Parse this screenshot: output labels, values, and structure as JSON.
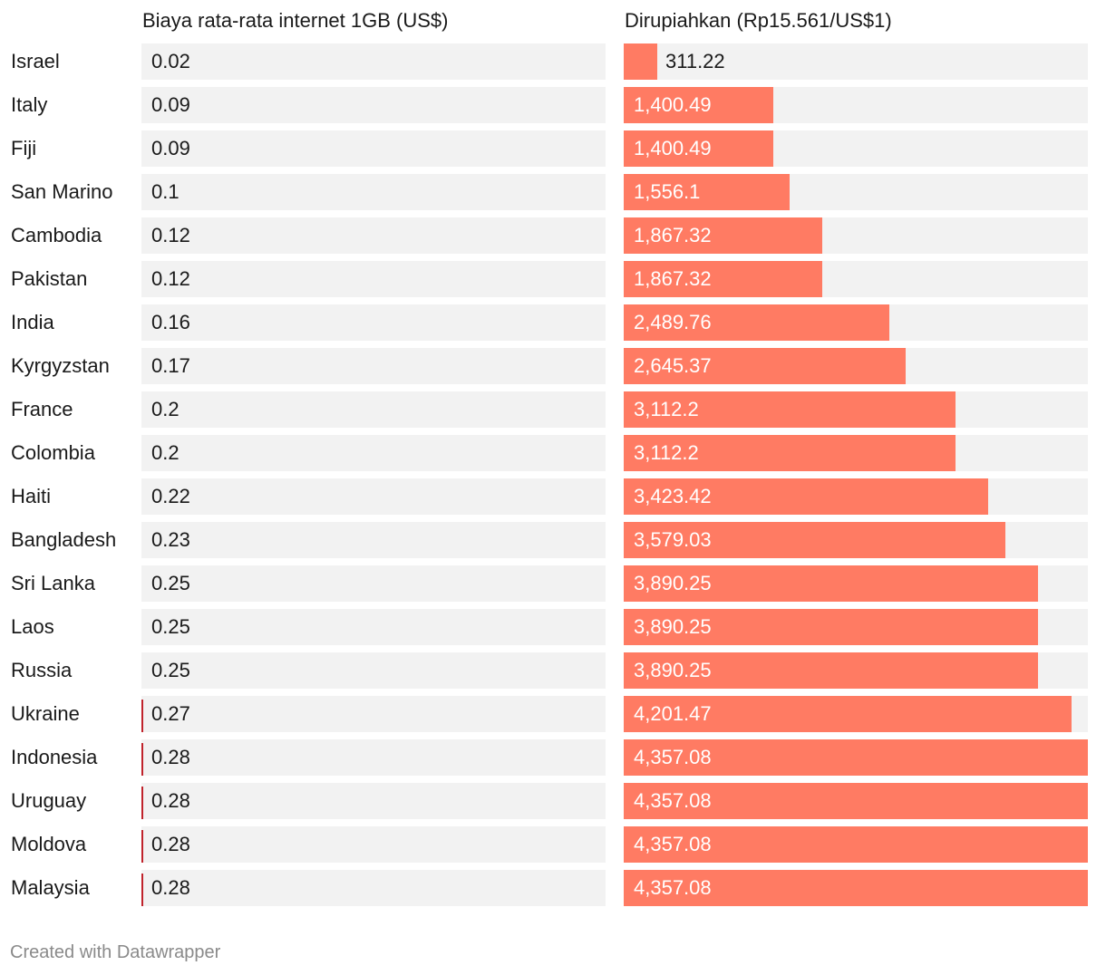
{
  "chart_data": {
    "type": "table",
    "columns": [
      "Biaya rata-rata internet 1GB (US$)",
      "Dirupiahkan (Rp15.561/US$1)"
    ],
    "rows": [
      {
        "country": "Israel",
        "usd": "0.02",
        "rp": 311.22,
        "rp_label": "311.22",
        "marked": false
      },
      {
        "country": "Italy",
        "usd": "0.09",
        "rp": 1400.49,
        "rp_label": "1,400.49",
        "marked": false
      },
      {
        "country": "Fiji",
        "usd": "0.09",
        "rp": 1400.49,
        "rp_label": "1,400.49",
        "marked": false
      },
      {
        "country": "San Marino",
        "usd": "0.1",
        "rp": 1556.1,
        "rp_label": "1,556.1",
        "marked": false
      },
      {
        "country": "Cambodia",
        "usd": "0.12",
        "rp": 1867.32,
        "rp_label": "1,867.32",
        "marked": false
      },
      {
        "country": "Pakistan",
        "usd": "0.12",
        "rp": 1867.32,
        "rp_label": "1,867.32",
        "marked": false
      },
      {
        "country": "India",
        "usd": "0.16",
        "rp": 2489.76,
        "rp_label": "2,489.76",
        "marked": false
      },
      {
        "country": "Kyrgyzstan",
        "usd": "0.17",
        "rp": 2645.37,
        "rp_label": "2,645.37",
        "marked": false
      },
      {
        "country": "France",
        "usd": "0.2",
        "rp": 3112.2,
        "rp_label": "3,112.2",
        "marked": false
      },
      {
        "country": "Colombia",
        "usd": "0.2",
        "rp": 3112.2,
        "rp_label": "3,112.2",
        "marked": false
      },
      {
        "country": "Haiti",
        "usd": "0.22",
        "rp": 3423.42,
        "rp_label": "3,423.42",
        "marked": false
      },
      {
        "country": "Bangladesh",
        "usd": "0.23",
        "rp": 3579.03,
        "rp_label": "3,579.03",
        "marked": false
      },
      {
        "country": "Sri Lanka",
        "usd": "0.25",
        "rp": 3890.25,
        "rp_label": "3,890.25",
        "marked": false
      },
      {
        "country": "Laos",
        "usd": "0.25",
        "rp": 3890.25,
        "rp_label": "3,890.25",
        "marked": false
      },
      {
        "country": "Russia",
        "usd": "0.25",
        "rp": 3890.25,
        "rp_label": "3,890.25",
        "marked": false
      },
      {
        "country": "Ukraine",
        "usd": "0.27",
        "rp": 4201.47,
        "rp_label": "4,201.47",
        "marked": true
      },
      {
        "country": "Indonesia",
        "usd": "0.28",
        "rp": 4357.08,
        "rp_label": "4,357.08",
        "marked": true
      },
      {
        "country": "Uruguay",
        "usd": "0.28",
        "rp": 4357.08,
        "rp_label": "4,357.08",
        "marked": true
      },
      {
        "country": "Moldova",
        "usd": "0.28",
        "rp": 4357.08,
        "rp_label": "4,357.08",
        "marked": true
      },
      {
        "country": "Malaysia",
        "usd": "0.28",
        "rp": 4357.08,
        "rp_label": "4,357.08",
        "marked": true
      }
    ],
    "rp_max": 4357.08
  },
  "footer": "Created with Datawrapper",
  "colors": {
    "bar": "#ff7b63",
    "track": "#f2f2f2",
    "marker": "#c0232b"
  }
}
